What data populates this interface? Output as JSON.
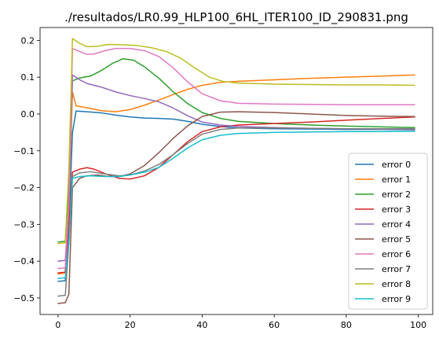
{
  "chart_data": {
    "type": "line",
    "title": "./resultados/LR0.99_HLP100_6HL_ITER100_ID_290831.png",
    "xlabel": "",
    "ylabel": "",
    "xlim": [
      -5,
      104
    ],
    "ylim": [
      -0.545,
      0.235
    ],
    "xticks": [
      0,
      20,
      40,
      60,
      80,
      100
    ],
    "xtick_labels": [
      "0",
      "20",
      "40",
      "60",
      "80",
      "100"
    ],
    "yticks": [
      -0.5,
      -0.4,
      -0.3,
      -0.2,
      -0.1,
      0.0,
      0.1,
      0.2
    ],
    "ytick_labels": [
      "−0.5",
      "−0.4",
      "−0.3",
      "−0.2",
      "−0.1",
      "0.0",
      "0.1",
      "0.2"
    ],
    "grid": false,
    "legend_position": "lower right",
    "series": [
      {
        "name": "error 0",
        "color": "#1f77b4",
        "points": [
          [
            0,
            -0.455
          ],
          [
            2,
            -0.453
          ],
          [
            3,
            -0.3
          ],
          [
            4,
            -0.05
          ],
          [
            5,
            0.008
          ],
          [
            8,
            0.006
          ],
          [
            12,
            0.003
          ],
          [
            16,
            -0.003
          ],
          [
            20,
            -0.008
          ],
          [
            24,
            -0.011
          ],
          [
            28,
            -0.012
          ],
          [
            32,
            -0.014
          ],
          [
            36,
            -0.02
          ],
          [
            40,
            -0.028
          ],
          [
            45,
            -0.034
          ],
          [
            50,
            -0.038
          ],
          [
            60,
            -0.04
          ],
          [
            70,
            -0.041
          ],
          [
            80,
            -0.042
          ],
          [
            90,
            -0.042
          ],
          [
            99,
            -0.043
          ]
        ]
      },
      {
        "name": "error 1",
        "color": "#ff7f0e",
        "points": [
          [
            0,
            -0.435
          ],
          [
            2,
            -0.432
          ],
          [
            3,
            -0.25
          ],
          [
            4,
            0.06
          ],
          [
            5,
            0.022
          ],
          [
            8,
            0.017
          ],
          [
            12,
            0.009
          ],
          [
            16,
            0.006
          ],
          [
            20,
            0.012
          ],
          [
            24,
            0.024
          ],
          [
            28,
            0.038
          ],
          [
            32,
            0.053
          ],
          [
            36,
            0.067
          ],
          [
            40,
            0.078
          ],
          [
            45,
            0.086
          ],
          [
            50,
            0.089
          ],
          [
            60,
            0.093
          ],
          [
            70,
            0.097
          ],
          [
            80,
            0.1
          ],
          [
            90,
            0.103
          ],
          [
            99,
            0.106
          ]
        ]
      },
      {
        "name": "error 2",
        "color": "#2ca02c",
        "points": [
          [
            0,
            -0.348
          ],
          [
            2,
            -0.346
          ],
          [
            3,
            -0.2
          ],
          [
            4,
            0.09
          ],
          [
            6,
            0.098
          ],
          [
            9,
            0.103
          ],
          [
            12,
            0.118
          ],
          [
            15,
            0.137
          ],
          [
            18,
            0.15
          ],
          [
            21,
            0.146
          ],
          [
            24,
            0.128
          ],
          [
            28,
            0.097
          ],
          [
            32,
            0.06
          ],
          [
            36,
            0.028
          ],
          [
            40,
            0.004
          ],
          [
            45,
            -0.012
          ],
          [
            50,
            -0.02
          ],
          [
            60,
            -0.026
          ],
          [
            70,
            -0.03
          ],
          [
            80,
            -0.033
          ],
          [
            90,
            -0.035
          ],
          [
            99,
            -0.037
          ]
        ]
      },
      {
        "name": "error 3",
        "color": "#d62728",
        "points": [
          [
            0,
            -0.432
          ],
          [
            2,
            -0.43
          ],
          [
            3,
            -0.3
          ],
          [
            4,
            -0.158
          ],
          [
            6,
            -0.15
          ],
          [
            8,
            -0.146
          ],
          [
            10,
            -0.15
          ],
          [
            13,
            -0.162
          ],
          [
            17,
            -0.175
          ],
          [
            20,
            -0.177
          ],
          [
            24,
            -0.168
          ],
          [
            28,
            -0.145
          ],
          [
            32,
            -0.11
          ],
          [
            36,
            -0.075
          ],
          [
            40,
            -0.048
          ],
          [
            45,
            -0.035
          ],
          [
            50,
            -0.03
          ],
          [
            60,
            -0.026
          ],
          [
            70,
            -0.022
          ],
          [
            80,
            -0.017
          ],
          [
            90,
            -0.012
          ],
          [
            99,
            -0.008
          ]
        ]
      },
      {
        "name": "error 4",
        "color": "#9467bd",
        "points": [
          [
            0,
            -0.4
          ],
          [
            2,
            -0.398
          ],
          [
            3,
            -0.25
          ],
          [
            4,
            0.106
          ],
          [
            6,
            0.093
          ],
          [
            8,
            0.083
          ],
          [
            12,
            0.073
          ],
          [
            16,
            0.06
          ],
          [
            20,
            0.05
          ],
          [
            24,
            0.042
          ],
          [
            28,
            0.033
          ],
          [
            32,
            0.016
          ],
          [
            36,
            -0.005
          ],
          [
            40,
            -0.022
          ],
          [
            45,
            -0.03
          ],
          [
            50,
            -0.034
          ],
          [
            60,
            -0.037
          ],
          [
            70,
            -0.039
          ],
          [
            80,
            -0.04
          ],
          [
            90,
            -0.041
          ],
          [
            99,
            -0.042
          ]
        ]
      },
      {
        "name": "error 5",
        "color": "#8c564b",
        "points": [
          [
            0,
            -0.515
          ],
          [
            2,
            -0.513
          ],
          [
            3,
            -0.49
          ],
          [
            4,
            -0.2
          ],
          [
            6,
            -0.175
          ],
          [
            8,
            -0.168
          ],
          [
            11,
            -0.166
          ],
          [
            14,
            -0.17
          ],
          [
            17,
            -0.17
          ],
          [
            20,
            -0.163
          ],
          [
            24,
            -0.14
          ],
          [
            28,
            -0.105
          ],
          [
            32,
            -0.066
          ],
          [
            36,
            -0.032
          ],
          [
            40,
            -0.007
          ],
          [
            45,
            0.005
          ],
          [
            50,
            0.006
          ],
          [
            60,
            0.004
          ],
          [
            70,
            0.0
          ],
          [
            80,
            -0.004
          ],
          [
            90,
            -0.006
          ],
          [
            99,
            -0.007
          ]
        ]
      },
      {
        "name": "error 6",
        "color": "#e377c2",
        "points": [
          [
            0,
            -0.42
          ],
          [
            2,
            -0.418
          ],
          [
            3,
            -0.25
          ],
          [
            4,
            0.178
          ],
          [
            6,
            0.17
          ],
          [
            8,
            0.162
          ],
          [
            10,
            0.163
          ],
          [
            13,
            0.172
          ],
          [
            16,
            0.178
          ],
          [
            20,
            0.178
          ],
          [
            24,
            0.172
          ],
          [
            28,
            0.156
          ],
          [
            32,
            0.125
          ],
          [
            36,
            0.087
          ],
          [
            40,
            0.055
          ],
          [
            45,
            0.036
          ],
          [
            50,
            0.029
          ],
          [
            60,
            0.027
          ],
          [
            70,
            0.026
          ],
          [
            80,
            0.025
          ],
          [
            90,
            0.025
          ],
          [
            99,
            0.025
          ]
        ]
      },
      {
        "name": "error 7",
        "color": "#7f7f7f",
        "points": [
          [
            0,
            -0.495
          ],
          [
            2,
            -0.493
          ],
          [
            3,
            -0.35
          ],
          [
            4,
            -0.17
          ],
          [
            6,
            -0.16
          ],
          [
            9,
            -0.157
          ],
          [
            13,
            -0.163
          ],
          [
            17,
            -0.168
          ],
          [
            20,
            -0.166
          ],
          [
            24,
            -0.155
          ],
          [
            28,
            -0.137
          ],
          [
            32,
            -0.11
          ],
          [
            36,
            -0.08
          ],
          [
            40,
            -0.055
          ],
          [
            45,
            -0.042
          ],
          [
            50,
            -0.038
          ],
          [
            60,
            -0.038
          ],
          [
            70,
            -0.039
          ],
          [
            80,
            -0.04
          ],
          [
            90,
            -0.04
          ],
          [
            99,
            -0.04
          ]
        ]
      },
      {
        "name": "error 8",
        "color": "#bcbd22",
        "points": [
          [
            0,
            -0.352
          ],
          [
            2,
            -0.35
          ],
          [
            3,
            -0.15
          ],
          [
            4,
            0.205
          ],
          [
            6,
            0.192
          ],
          [
            8,
            0.183
          ],
          [
            11,
            0.184
          ],
          [
            14,
            0.189
          ],
          [
            18,
            0.188
          ],
          [
            22,
            0.186
          ],
          [
            26,
            0.18
          ],
          [
            30,
            0.17
          ],
          [
            34,
            0.152
          ],
          [
            38,
            0.125
          ],
          [
            42,
            0.1
          ],
          [
            46,
            0.088
          ],
          [
            50,
            0.084
          ],
          [
            60,
            0.081
          ],
          [
            70,
            0.08
          ],
          [
            80,
            0.079
          ],
          [
            90,
            0.079
          ],
          [
            99,
            0.078
          ]
        ]
      },
      {
        "name": "error 9",
        "color": "#17becf",
        "points": [
          [
            0,
            -0.447
          ],
          [
            2,
            -0.445
          ],
          [
            3,
            -0.35
          ],
          [
            4,
            -0.175
          ],
          [
            6,
            -0.17
          ],
          [
            9,
            -0.168
          ],
          [
            13,
            -0.17
          ],
          [
            17,
            -0.17
          ],
          [
            20,
            -0.166
          ],
          [
            24,
            -0.158
          ],
          [
            28,
            -0.145
          ],
          [
            32,
            -0.12
          ],
          [
            36,
            -0.092
          ],
          [
            40,
            -0.07
          ],
          [
            45,
            -0.058
          ],
          [
            50,
            -0.053
          ],
          [
            60,
            -0.05
          ],
          [
            70,
            -0.049
          ],
          [
            80,
            -0.048
          ],
          [
            90,
            -0.048
          ],
          [
            99,
            -0.047
          ]
        ]
      }
    ]
  }
}
